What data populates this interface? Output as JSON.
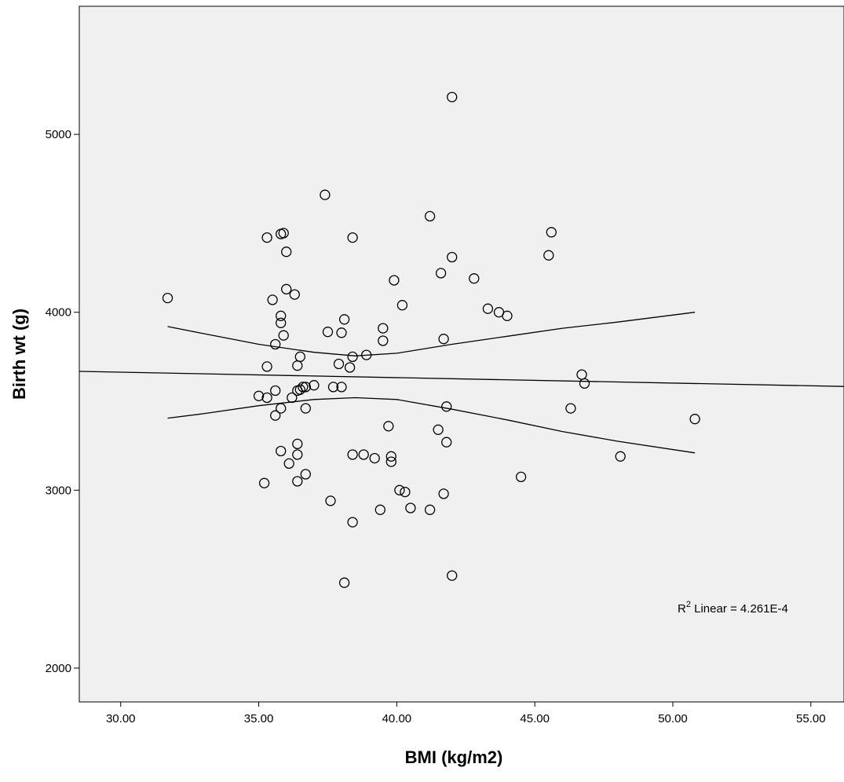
{
  "chart_data": {
    "type": "scatter",
    "title": "",
    "xlabel": "BMI (kg/m2)",
    "ylabel": "Birth wt (g)",
    "xlim": [
      28.5,
      56.2
    ],
    "ylim": [
      1810,
      5720
    ],
    "x_ticks": [
      30,
      35,
      40,
      45,
      50,
      55
    ],
    "x_tick_labels": [
      "30.00",
      "35.00",
      "40.00",
      "45.00",
      "50.00",
      "55.00"
    ],
    "y_ticks": [
      2000,
      3000,
      4000,
      5000
    ],
    "y_tick_labels": [
      "2000",
      "3000",
      "4000",
      "5000"
    ],
    "grid": false,
    "colors": {
      "plot_background": "#f0f0f0",
      "marker_stroke": "#000000",
      "line": "#000000"
    },
    "annotation": {
      "prefix": "R",
      "superscript": "2",
      "text": " Linear = 4.261E-4"
    },
    "points": [
      {
        "x": 31.7,
        "y": 4080
      },
      {
        "x": 42.0,
        "y": 5210
      },
      {
        "x": 37.4,
        "y": 4660
      },
      {
        "x": 41.2,
        "y": 4540
      },
      {
        "x": 45.6,
        "y": 4450
      },
      {
        "x": 35.3,
        "y": 4420
      },
      {
        "x": 35.8,
        "y": 4440
      },
      {
        "x": 35.9,
        "y": 4445
      },
      {
        "x": 38.4,
        "y": 4420
      },
      {
        "x": 36.0,
        "y": 4340
      },
      {
        "x": 42.0,
        "y": 4310
      },
      {
        "x": 45.5,
        "y": 4320
      },
      {
        "x": 41.6,
        "y": 4220
      },
      {
        "x": 42.8,
        "y": 4190
      },
      {
        "x": 39.9,
        "y": 4180
      },
      {
        "x": 36.0,
        "y": 4130
      },
      {
        "x": 36.3,
        "y": 4100
      },
      {
        "x": 35.5,
        "y": 4070
      },
      {
        "x": 40.2,
        "y": 4040
      },
      {
        "x": 43.3,
        "y": 4020
      },
      {
        "x": 43.7,
        "y": 4000
      },
      {
        "x": 44.0,
        "y": 3980
      },
      {
        "x": 35.8,
        "y": 3980
      },
      {
        "x": 35.8,
        "y": 3940
      },
      {
        "x": 38.1,
        "y": 3960
      },
      {
        "x": 39.5,
        "y": 3910
      },
      {
        "x": 37.5,
        "y": 3890
      },
      {
        "x": 38.0,
        "y": 3885
      },
      {
        "x": 35.9,
        "y": 3870
      },
      {
        "x": 41.7,
        "y": 3850
      },
      {
        "x": 39.5,
        "y": 3840
      },
      {
        "x": 35.6,
        "y": 3820
      },
      {
        "x": 38.9,
        "y": 3760
      },
      {
        "x": 38.4,
        "y": 3750
      },
      {
        "x": 36.5,
        "y": 3750
      },
      {
        "x": 37.9,
        "y": 3710
      },
      {
        "x": 36.4,
        "y": 3700
      },
      {
        "x": 35.3,
        "y": 3695
      },
      {
        "x": 38.3,
        "y": 3690
      },
      {
        "x": 46.7,
        "y": 3650
      },
      {
        "x": 46.8,
        "y": 3600
      },
      {
        "x": 37.0,
        "y": 3590
      },
      {
        "x": 36.6,
        "y": 3580
      },
      {
        "x": 36.7,
        "y": 3580
      },
      {
        "x": 37.7,
        "y": 3580
      },
      {
        "x": 38.0,
        "y": 3580
      },
      {
        "x": 36.4,
        "y": 3560
      },
      {
        "x": 36.5,
        "y": 3565
      },
      {
        "x": 35.6,
        "y": 3560
      },
      {
        "x": 35.0,
        "y": 3530
      },
      {
        "x": 35.3,
        "y": 3520
      },
      {
        "x": 36.2,
        "y": 3520
      },
      {
        "x": 41.8,
        "y": 3470
      },
      {
        "x": 35.8,
        "y": 3460
      },
      {
        "x": 36.7,
        "y": 3460
      },
      {
        "x": 46.3,
        "y": 3460
      },
      {
        "x": 35.6,
        "y": 3420
      },
      {
        "x": 50.8,
        "y": 3400
      },
      {
        "x": 39.7,
        "y": 3360
      },
      {
        "x": 41.5,
        "y": 3340
      },
      {
        "x": 41.8,
        "y": 3270
      },
      {
        "x": 36.4,
        "y": 3260
      },
      {
        "x": 35.8,
        "y": 3220
      },
      {
        "x": 36.4,
        "y": 3200
      },
      {
        "x": 38.4,
        "y": 3200
      },
      {
        "x": 38.8,
        "y": 3200
      },
      {
        "x": 39.2,
        "y": 3180
      },
      {
        "x": 39.8,
        "y": 3190
      },
      {
        "x": 48.1,
        "y": 3190
      },
      {
        "x": 36.1,
        "y": 3150
      },
      {
        "x": 39.8,
        "y": 3160
      },
      {
        "x": 36.7,
        "y": 3090
      },
      {
        "x": 44.5,
        "y": 3075
      },
      {
        "x": 35.2,
        "y": 3040
      },
      {
        "x": 36.4,
        "y": 3050
      },
      {
        "x": 40.1,
        "y": 3000
      },
      {
        "x": 40.3,
        "y": 2990
      },
      {
        "x": 41.7,
        "y": 2980
      },
      {
        "x": 37.6,
        "y": 2940
      },
      {
        "x": 40.5,
        "y": 2900
      },
      {
        "x": 39.4,
        "y": 2890
      },
      {
        "x": 41.2,
        "y": 2890
      },
      {
        "x": 38.4,
        "y": 2820
      },
      {
        "x": 42.0,
        "y": 2520
      },
      {
        "x": 38.1,
        "y": 2480
      }
    ],
    "fit_line": {
      "x": [
        28.5,
        56.2
      ],
      "y": [
        3668,
        3583
      ]
    },
    "ci_upper": {
      "x": [
        31.7,
        33.0,
        35.0,
        37.0,
        38.5,
        40.0,
        42.0,
        44.0,
        46.0,
        48.0,
        50.8
      ],
      "y": [
        3920,
        3880,
        3820,
        3775,
        3755,
        3770,
        3820,
        3865,
        3910,
        3945,
        4000
      ]
    },
    "ci_lower": {
      "x": [
        31.7,
        33.0,
        35.0,
        37.0,
        38.5,
        40.0,
        42.0,
        44.0,
        46.0,
        48.0,
        50.8
      ],
      "y": [
        3405,
        3430,
        3475,
        3510,
        3520,
        3510,
        3455,
        3395,
        3330,
        3275,
        3210
      ]
    }
  }
}
